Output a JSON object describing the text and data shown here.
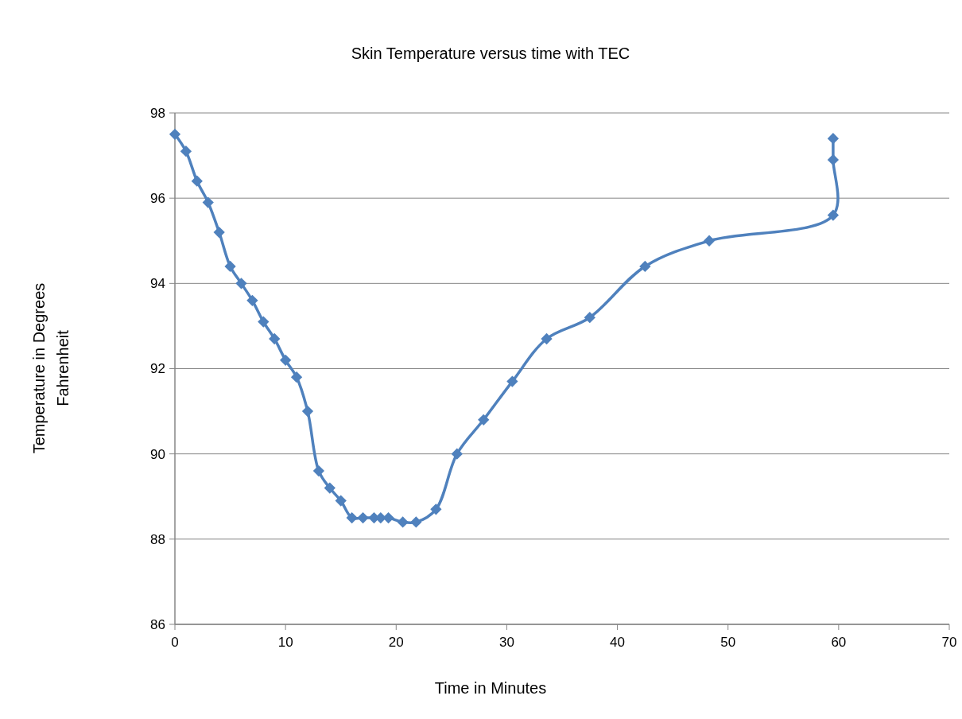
{
  "chart_data": {
    "type": "line",
    "title": "Skin Temperature versus time with TEC",
    "xlabel": "Time in Minutes",
    "ylabel": "Temperature in Degrees Fahrenheit",
    "series": [
      {
        "color": "#4f81bd",
        "x": [
          0,
          1,
          2,
          3,
          4,
          5,
          6,
          7,
          8,
          9,
          10,
          11,
          12,
          13,
          14,
          15,
          16,
          17,
          18,
          18.6,
          19.3,
          20.6,
          21.8,
          23.6,
          25.5,
          27.9,
          30.5,
          33.6,
          37.5,
          42.5,
          48.3,
          59.5,
          59.5,
          59.5
        ],
        "values": [
          97.5,
          97.1,
          96.4,
          95.9,
          95.2,
          94.4,
          94.0,
          93.6,
          93.1,
          92.7,
          92.2,
          91.8,
          91.0,
          89.6,
          89.2,
          88.9,
          88.5,
          88.5,
          88.5,
          88.5,
          88.5,
          88.4,
          88.4,
          88.7,
          90.0,
          90.8,
          91.7,
          92.7,
          93.2,
          94.4,
          95.0,
          95.6,
          96.9,
          97.4
        ]
      }
    ],
    "xlim": [
      0,
      70
    ],
    "xticks": [
      0,
      10,
      20,
      30,
      40,
      50,
      60,
      70
    ],
    "ylim": [
      86,
      98
    ],
    "yticks": [
      86,
      88,
      90,
      92,
      94,
      96,
      98
    ],
    "grid": "y",
    "marker": "diamond",
    "line_style": "solid"
  }
}
